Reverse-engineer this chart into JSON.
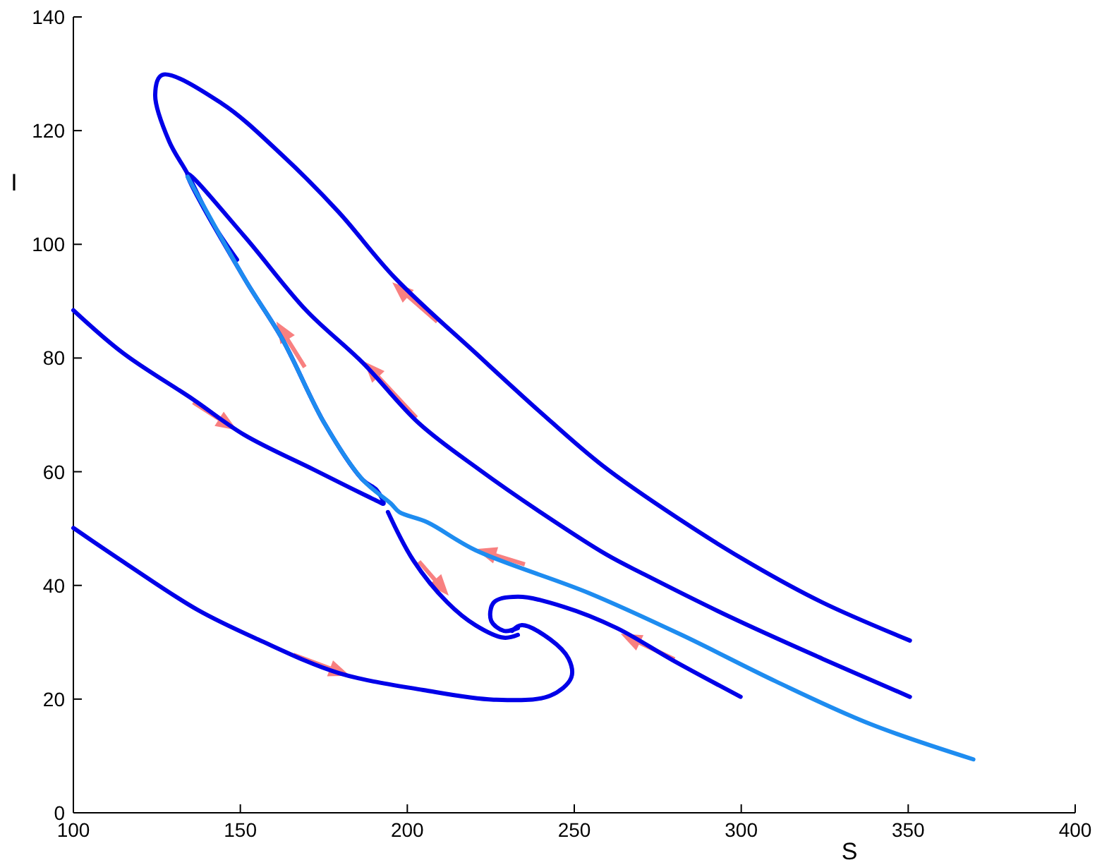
{
  "chart_data": {
    "type": "line",
    "xlabel": "S",
    "ylabel": "I",
    "xlim": [
      100,
      400
    ],
    "xticks": [
      100,
      150,
      200,
      250,
      300,
      350,
      400
    ],
    "ylim": [
      0,
      140
    ],
    "yticks": [
      0,
      20,
      40,
      60,
      80,
      100,
      120,
      140
    ],
    "grid": false,
    "marker": "none",
    "line_style": "solid",
    "series": [
      {
        "color": "#0000e8",
        "x": [
          350.5,
          324.3,
          303.2,
          280.8,
          258.4,
          239.8,
          221.7,
          196.3,
          179.4,
          162.5,
          144.4,
          126.6,
          124.5,
          128.7,
          134.2,
          141.4,
          149
        ],
        "values": [
          30.3,
          37,
          43.7,
          51.9,
          61.1,
          70.5,
          80.2,
          94.1,
          105.7,
          115.7,
          124.8,
          129.8,
          126.3,
          118.1,
          112.4,
          104,
          97.3
        ]
      },
      {
        "color": "#0000e8",
        "x": [
          100,
          114.8,
          135.9,
          151.1,
          172.2,
          190.8,
          192.9,
          190.8,
          186.6,
          175.2,
          162.5,
          151.1,
          134.2,
          151.1,
          169.7,
          186.6,
          203.5,
          221.7,
          239.8,
          259.7,
          271.1,
          296.5,
          324.3,
          350.5
        ],
        "values": [
          88.4,
          80.9,
          72.7,
          66.5,
          60.3,
          54.9,
          54.4,
          56.8,
          58.6,
          68.5,
          83.4,
          94.1,
          112.4,
          101.5,
          88.4,
          79.2,
          68.5,
          60.3,
          52.9,
          45.4,
          41.9,
          34.5,
          27.1,
          20.4
        ]
      },
      {
        "color": "#0000e8",
        "x": [
          100,
          116.1,
          137.2,
          155.3,
          179.4,
          204.8,
          225.9,
          242.8,
          249.1,
          248.3,
          242.8,
          234.3,
          231.4
        ],
        "values": [
          50.1,
          43.7,
          35.7,
          30.5,
          24.6,
          21.6,
          19.9,
          20.6,
          23.8,
          27.1,
          30.5,
          33,
          32
        ]
      },
      {
        "color": "#0000e8",
        "x": [
          299.8,
          279.6,
          262.7,
          247,
          233.1,
          225.9,
          225.1,
          228.9,
          233.1
        ],
        "values": [
          20.4,
          26.8,
          32.5,
          36.2,
          38,
          37,
          33.8,
          32,
          32.5
        ]
      },
      {
        "color": "#0000e8",
        "x": [
          194.2,
          201.8,
          212,
          220.4,
          228.9,
          233.1
        ],
        "values": [
          52.9,
          44.4,
          37,
          33,
          30.8,
          31.3
        ]
      },
      {
        "color": "#1e8cf0",
        "x": [
          369.5,
          338.7,
          310.4,
          282.1,
          254.2,
          220.4,
          206,
          197.6,
          195.1,
          186.6,
          175.2,
          162.5,
          151.1,
          134.2
        ],
        "values": [
          9.4,
          15.6,
          23.1,
          31.3,
          38.7,
          46.2,
          51.1,
          52.9,
          54.4,
          58.6,
          68.5,
          83.4,
          94.1,
          111.9
        ]
      }
    ]
  }
}
